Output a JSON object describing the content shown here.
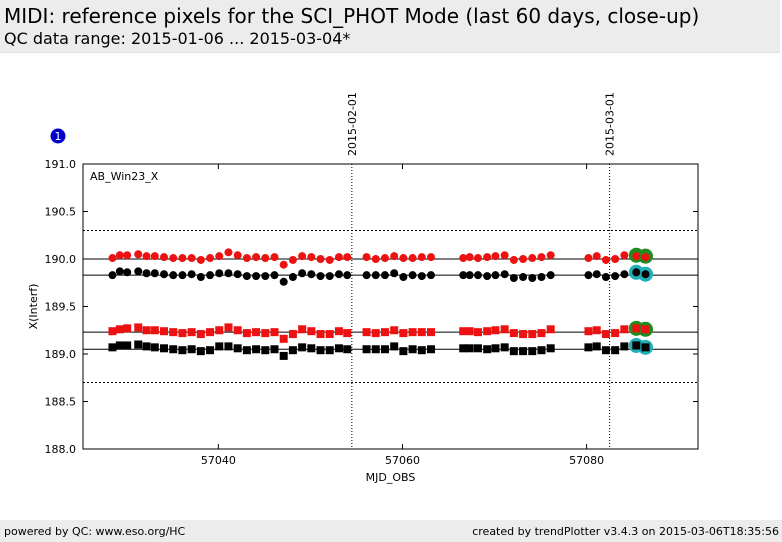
{
  "header": {
    "title": "MIDI: reference pixels for the SCI_PHOT Mode (last 60 days, close-up)",
    "subtitle": "QC data range: 2015-01-06 ... 2015-03-04*"
  },
  "footer": {
    "left": "powered by QC: www.eso.org/HC",
    "right": "created by trendPlotter v3.4.3 on 2015-03-06T18:35:56"
  },
  "chart_data": {
    "type": "scatter",
    "panel_label": "AB_Win23_X",
    "badge": "1",
    "xlabel": "MJD_OBS",
    "ylabel": "X(Interf)",
    "xlim": [
      57025.3,
      57092.1
    ],
    "ylim": [
      188.0,
      191.0
    ],
    "xticks": [
      57040,
      57060,
      57080
    ],
    "xtick_labels": [
      "57040",
      "57060",
      "57080"
    ],
    "yticks": [
      188.0,
      188.5,
      189.0,
      189.5,
      190.0,
      190.5,
      191.0
    ],
    "ytick_labels": [
      "188.0",
      "188.5",
      "189.0",
      "189.5",
      "190.0",
      "190.5",
      "191.0"
    ],
    "grid": false,
    "date_markers": [
      {
        "x": 57054.5,
        "label": "2015-02-01"
      },
      {
        "x": 57082.5,
        "label": "2015-03-01"
      }
    ],
    "threshold_lines": [
      190.3,
      188.7
    ],
    "reference_lines": [
      190.0,
      189.83,
      189.23,
      189.05
    ],
    "colors": {
      "red": "#ee1111",
      "black": "#000000",
      "highlight_green": "#1e8c1e",
      "highlight_cyan": "#1fb0b8",
      "badge": "#0000cc",
      "threshold": "#000000"
    },
    "series": [
      {
        "marker": "circle",
        "color": "red",
        "x": [
          57028.5,
          57029.3,
          57030.1,
          57031.3,
          57032.2,
          57033.1,
          57034.1,
          57035.1,
          57036.1,
          57037.1,
          57038.1,
          57039.1,
          57040.1,
          57041.1,
          57042.1,
          57043.1,
          57044.1,
          57045.1,
          57046.1,
          57047.1,
          57048.1,
          57049.1,
          57050.1,
          57051.1,
          57052.1,
          57053.1,
          57054.0,
          57056.1,
          57057.1,
          57058.1,
          57059.1,
          57060.1,
          57061.1,
          57062.1,
          57063.1,
          57066.6,
          57067.3,
          57068.2,
          57069.2,
          57070.1,
          57071.1,
          57072.1,
          57073.1,
          57074.1,
          57075.1,
          57076.1,
          57080.2,
          57081.1,
          57082.1,
          57083.1,
          57084.1
        ],
        "y": [
          190.01,
          190.04,
          190.04,
          190.05,
          190.03,
          190.03,
          190.02,
          190.01,
          190.01,
          190.01,
          189.99,
          190.01,
          190.03,
          190.07,
          190.04,
          190.01,
          190.02,
          190.01,
          190.02,
          189.94,
          189.99,
          190.03,
          190.02,
          190.0,
          189.99,
          190.02,
          190.02,
          190.02,
          190.0,
          190.01,
          190.03,
          190.01,
          190.01,
          190.02,
          190.02,
          190.01,
          190.02,
          190.01,
          190.02,
          190.03,
          190.04,
          189.99,
          190.0,
          190.01,
          190.02,
          190.04,
          190.01,
          190.03,
          189.99,
          190.0,
          190.04
        ]
      },
      {
        "marker": "circle",
        "color": "black",
        "x": [
          57028.5,
          57029.3,
          57030.1,
          57031.3,
          57032.2,
          57033.1,
          57034.1,
          57035.1,
          57036.1,
          57037.1,
          57038.1,
          57039.1,
          57040.1,
          57041.1,
          57042.1,
          57043.1,
          57044.1,
          57045.1,
          57046.1,
          57047.1,
          57048.1,
          57049.1,
          57050.1,
          57051.1,
          57052.1,
          57053.1,
          57054.0,
          57056.1,
          57057.1,
          57058.1,
          57059.1,
          57060.1,
          57061.1,
          57062.1,
          57063.1,
          57066.6,
          57067.3,
          57068.2,
          57069.2,
          57070.1,
          57071.1,
          57072.1,
          57073.1,
          57074.1,
          57075.1,
          57076.1,
          57080.2,
          57081.1,
          57082.1,
          57083.1,
          57084.1
        ],
        "y": [
          189.83,
          189.87,
          189.86,
          189.87,
          189.85,
          189.85,
          189.84,
          189.83,
          189.83,
          189.84,
          189.81,
          189.83,
          189.85,
          189.85,
          189.84,
          189.82,
          189.82,
          189.82,
          189.83,
          189.76,
          189.81,
          189.85,
          189.84,
          189.82,
          189.82,
          189.84,
          189.83,
          189.83,
          189.83,
          189.83,
          189.85,
          189.81,
          189.83,
          189.82,
          189.83,
          189.83,
          189.83,
          189.83,
          189.82,
          189.83,
          189.84,
          189.8,
          189.81,
          189.8,
          189.81,
          189.83,
          189.83,
          189.84,
          189.81,
          189.82,
          189.84
        ]
      },
      {
        "marker": "square",
        "color": "red",
        "x": [
          57028.5,
          57029.3,
          57030.1,
          57031.3,
          57032.2,
          57033.1,
          57034.1,
          57035.1,
          57036.1,
          57037.1,
          57038.1,
          57039.1,
          57040.1,
          57041.1,
          57042.1,
          57043.1,
          57044.1,
          57045.1,
          57046.1,
          57047.1,
          57048.1,
          57049.1,
          57050.1,
          57051.1,
          57052.1,
          57053.1,
          57054.0,
          57056.1,
          57057.1,
          57058.1,
          57059.1,
          57060.1,
          57061.1,
          57062.1,
          57063.1,
          57066.6,
          57067.3,
          57068.2,
          57069.2,
          57070.1,
          57071.1,
          57072.1,
          57073.1,
          57074.1,
          57075.1,
          57076.1,
          57080.2,
          57081.1,
          57082.1,
          57083.1,
          57084.1
        ],
        "y": [
          189.24,
          189.26,
          189.27,
          189.28,
          189.25,
          189.25,
          189.24,
          189.23,
          189.22,
          189.23,
          189.21,
          189.23,
          189.25,
          189.28,
          189.25,
          189.22,
          189.23,
          189.22,
          189.23,
          189.16,
          189.21,
          189.26,
          189.24,
          189.21,
          189.21,
          189.24,
          189.22,
          189.23,
          189.22,
          189.23,
          189.25,
          189.22,
          189.23,
          189.23,
          189.23,
          189.24,
          189.24,
          189.23,
          189.24,
          189.25,
          189.26,
          189.22,
          189.21,
          189.21,
          189.22,
          189.26,
          189.24,
          189.25,
          189.21,
          189.22,
          189.26
        ]
      },
      {
        "marker": "square",
        "color": "black",
        "x": [
          57028.5,
          57029.3,
          57030.1,
          57031.3,
          57032.2,
          57033.1,
          57034.1,
          57035.1,
          57036.1,
          57037.1,
          57038.1,
          57039.1,
          57040.1,
          57041.1,
          57042.1,
          57043.1,
          57044.1,
          57045.1,
          57046.1,
          57047.1,
          57048.1,
          57049.1,
          57050.1,
          57051.1,
          57052.1,
          57053.1,
          57054.0,
          57056.1,
          57057.1,
          57058.1,
          57059.1,
          57060.1,
          57061.1,
          57062.1,
          57063.1,
          57066.6,
          57067.3,
          57068.2,
          57069.2,
          57070.1,
          57071.1,
          57072.1,
          57073.1,
          57074.1,
          57075.1,
          57076.1,
          57080.2,
          57081.1,
          57082.1,
          57083.1,
          57084.1
        ],
        "y": [
          189.07,
          189.09,
          189.09,
          189.1,
          189.08,
          189.07,
          189.06,
          189.05,
          189.04,
          189.05,
          189.03,
          189.04,
          189.08,
          189.08,
          189.06,
          189.04,
          189.05,
          189.04,
          189.05,
          188.98,
          189.04,
          189.07,
          189.06,
          189.04,
          189.04,
          189.06,
          189.05,
          189.05,
          189.05,
          189.05,
          189.08,
          189.03,
          189.05,
          189.04,
          189.05,
          189.06,
          189.06,
          189.06,
          189.05,
          189.06,
          189.07,
          189.03,
          189.03,
          189.03,
          189.04,
          189.06,
          189.07,
          189.08,
          189.04,
          189.04,
          189.08
        ]
      }
    ],
    "highlights": [
      {
        "x": 57085.4,
        "y": 190.04,
        "color": "highlight_green"
      },
      {
        "x": 57086.4,
        "y": 190.03,
        "color": "highlight_green"
      },
      {
        "x": 57085.4,
        "y": 189.86,
        "color": "highlight_cyan"
      },
      {
        "x": 57086.4,
        "y": 189.84,
        "color": "highlight_cyan"
      },
      {
        "x": 57085.4,
        "y": 189.27,
        "color": "highlight_green"
      },
      {
        "x": 57086.4,
        "y": 189.26,
        "color": "highlight_green"
      },
      {
        "x": 57085.4,
        "y": 189.09,
        "color": "highlight_cyan"
      },
      {
        "x": 57086.4,
        "y": 189.07,
        "color": "highlight_cyan"
      }
    ],
    "highlight_points": [
      {
        "x": 57085.4,
        "y": 190.03,
        "marker": "circle",
        "color": "red"
      },
      {
        "x": 57086.4,
        "y": 190.02,
        "marker": "circle",
        "color": "red"
      },
      {
        "x": 57085.4,
        "y": 189.86,
        "marker": "circle",
        "color": "black"
      },
      {
        "x": 57086.4,
        "y": 189.84,
        "marker": "circle",
        "color": "black"
      },
      {
        "x": 57085.4,
        "y": 189.27,
        "marker": "square",
        "color": "red"
      },
      {
        "x": 57086.4,
        "y": 189.26,
        "marker": "square",
        "color": "red"
      },
      {
        "x": 57085.4,
        "y": 189.09,
        "marker": "square",
        "color": "black"
      },
      {
        "x": 57086.4,
        "y": 189.07,
        "marker": "square",
        "color": "black"
      }
    ]
  }
}
